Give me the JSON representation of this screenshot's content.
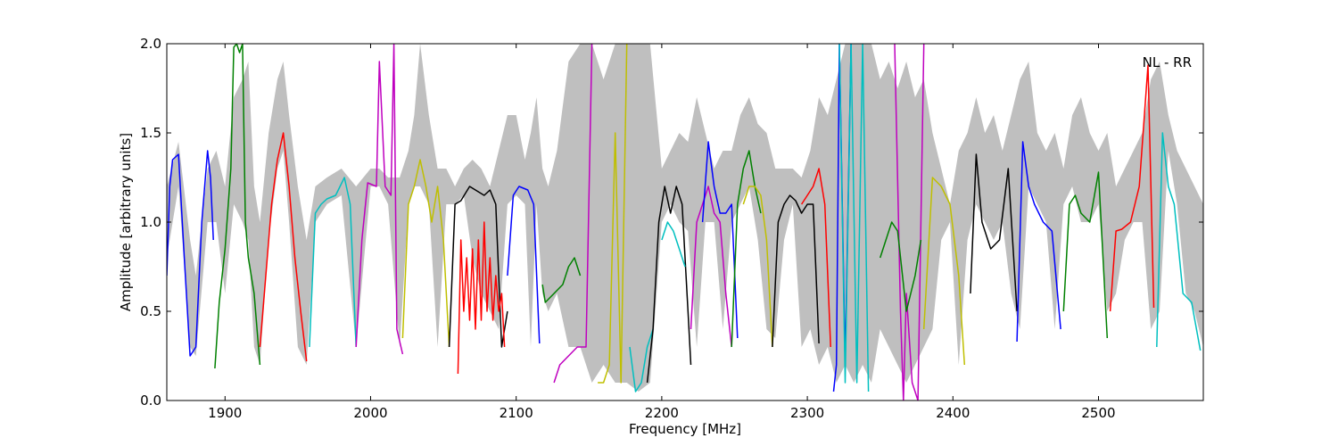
{
  "chart_data": {
    "type": "line",
    "title": "",
    "annotation": "NL - RR",
    "xlabel": "Frequency [MHz]",
    "ylabel": "Amplitude [arbitrary units]",
    "xlim": [
      1860,
      2572
    ],
    "ylim": [
      0,
      2
    ],
    "xticks": [
      1900,
      2000,
      2100,
      2200,
      2300,
      2400,
      2500
    ],
    "yticks": [
      0.0,
      0.5,
      1.0,
      1.5,
      2.0
    ],
    "ytick_labels": [
      "0.0",
      "0.5",
      "1.0",
      "1.5",
      "2.0"
    ],
    "grid": false,
    "background_envelope": {
      "name": "envelope",
      "color": "#bfbfbf",
      "x": [
        1860,
        1868,
        1876,
        1880,
        1888,
        1894,
        1900,
        1906,
        1912,
        1916,
        1920,
        1924,
        1930,
        1936,
        1940,
        1944,
        1950,
        1956,
        1962,
        1970,
        1980,
        1990,
        2000,
        2006,
        2012,
        2020,
        2026,
        2030,
        2034,
        2040,
        2046,
        2052,
        2058,
        2064,
        2070,
        2076,
        2082,
        2088,
        2094,
        2100,
        2106,
        2110,
        2114,
        2118,
        2122,
        2128,
        2136,
        2144,
        2152,
        2160,
        2168,
        2176,
        2184,
        2192,
        2200,
        2206,
        2212,
        2218,
        2224,
        2230,
        2236,
        2242,
        2248,
        2254,
        2260,
        2266,
        2272,
        2278,
        2284,
        2290,
        2296,
        2302,
        2308,
        2314,
        2320,
        2326,
        2332,
        2338,
        2344,
        2350,
        2356,
        2362,
        2368,
        2374,
        2380,
        2386,
        2392,
        2398,
        2404,
        2410,
        2416,
        2422,
        2428,
        2434,
        2440,
        2446,
        2452,
        2458,
        2464,
        2470,
        2476,
        2482,
        2488,
        2494,
        2500,
        2506,
        2512,
        2518,
        2524,
        2530,
        2536,
        2542,
        2548,
        2554,
        2560,
        2566,
        2572
      ],
      "y_upper": [
        1.2,
        1.45,
        0.9,
        0.7,
        1.3,
        1.4,
        1.2,
        1.7,
        1.8,
        1.9,
        1.2,
        1.0,
        1.5,
        1.8,
        1.9,
        1.6,
        1.2,
        0.9,
        1.2,
        1.25,
        1.3,
        1.2,
        1.3,
        1.3,
        1.25,
        1.25,
        1.4,
        1.6,
        2.0,
        1.6,
        1.3,
        1.3,
        1.2,
        1.3,
        1.35,
        1.3,
        1.2,
        1.4,
        1.6,
        1.6,
        1.35,
        1.5,
        1.7,
        1.3,
        1.2,
        1.4,
        1.9,
        2.0,
        2.0,
        1.8,
        2.0,
        2.0,
        2.0,
        2.0,
        1.3,
        1.4,
        1.5,
        1.45,
        1.7,
        1.5,
        1.3,
        1.4,
        1.4,
        1.6,
        1.7,
        1.55,
        1.5,
        1.3,
        1.3,
        1.3,
        1.25,
        1.4,
        1.7,
        1.6,
        1.8,
        2.0,
        2.0,
        2.0,
        2.0,
        1.8,
        1.9,
        1.75,
        1.9,
        1.7,
        1.8,
        1.5,
        1.3,
        1.1,
        1.4,
        1.5,
        1.7,
        1.5,
        1.6,
        1.4,
        1.6,
        1.8,
        1.9,
        1.5,
        1.4,
        1.5,
        1.3,
        1.6,
        1.7,
        1.5,
        1.4,
        1.5,
        1.2,
        1.3,
        1.4,
        1.5,
        1.8,
        1.9,
        1.6,
        1.4,
        1.3,
        1.2,
        1.1
      ],
      "y_lower": [
        0.8,
        1.2,
        0.3,
        0.25,
        1.0,
        1.0,
        0.6,
        1.1,
        1.0,
        0.9,
        0.3,
        0.2,
        0.9,
        1.3,
        1.4,
        1.0,
        0.3,
        0.2,
        1.0,
        1.1,
        1.15,
        0.3,
        1.2,
        1.2,
        1.1,
        0.3,
        1.1,
        1.2,
        1.2,
        1.1,
        0.3,
        1.1,
        1.1,
        1.15,
        0.8,
        0.6,
        0.5,
        0.4,
        1.1,
        1.15,
        1.1,
        0.3,
        1.1,
        0.6,
        0.5,
        0.6,
        0.3,
        0.3,
        0.1,
        0.2,
        0.1,
        0.1,
        0.05,
        0.1,
        1.0,
        1.1,
        1.0,
        0.95,
        0.3,
        1.0,
        1.0,
        0.4,
        1.0,
        1.1,
        1.2,
        0.9,
        0.4,
        0.35,
        0.9,
        1.1,
        0.3,
        0.4,
        0.2,
        0.3,
        0.1,
        0.2,
        0.1,
        0.2,
        0.1,
        0.4,
        0.3,
        0.2,
        0.1,
        0.2,
        0.3,
        0.4,
        0.9,
        1.0,
        0.2,
        0.9,
        1.1,
        1.0,
        0.9,
        1.0,
        0.6,
        0.4,
        1.2,
        1.1,
        1.0,
        0.4,
        1.1,
        1.2,
        1.0,
        1.0,
        1.1,
        0.5,
        0.6,
        0.9,
        1.0,
        1.0,
        0.4,
        0.5,
        1.4,
        1.1,
        0.6,
        0.5,
        0.3
      ]
    },
    "series": [
      {
        "color": "#0000ff",
        "x": [
          1860,
          1862,
          1864,
          1868,
          1872,
          1876,
          1880,
          1884,
          1888,
          1890,
          1892
        ],
        "y": [
          0.7,
          1.2,
          1.35,
          1.38,
          0.8,
          0.25,
          0.3,
          1.0,
          1.4,
          1.25,
          0.9
        ]
      },
      {
        "color": "#008000",
        "x": [
          1893,
          1896,
          1900,
          1904,
          1906,
          1908,
          1910,
          1912,
          1914,
          1916,
          1920,
          1924
        ],
        "y": [
          0.18,
          0.55,
          0.85,
          1.3,
          1.98,
          2.0,
          1.95,
          2.0,
          1.0,
          0.8,
          0.6,
          0.2
        ]
      },
      {
        "color": "#ff0000",
        "x": [
          1924,
          1928,
          1932,
          1936,
          1940,
          1944,
          1948,
          1952,
          1956
        ],
        "y": [
          0.3,
          0.7,
          1.1,
          1.35,
          1.5,
          1.2,
          0.8,
          0.5,
          0.22
        ]
      },
      {
        "color": "#00bfbf",
        "x": [
          1958,
          1962,
          1966,
          1970,
          1976,
          1982,
          1986,
          1990
        ],
        "y": [
          0.3,
          1.05,
          1.1,
          1.13,
          1.15,
          1.25,
          1.1,
          0.3
        ]
      },
      {
        "color": "#bf00bf",
        "x": [
          1990,
          1994,
          1998,
          2004,
          2006,
          2010,
          2014,
          2016,
          2018,
          2022
        ],
        "y": [
          0.3,
          0.9,
          1.22,
          1.2,
          1.9,
          1.2,
          1.15,
          2.0,
          0.4,
          0.26
        ]
      },
      {
        "color": "#bfbf00",
        "x": [
          2022,
          2026,
          2030,
          2034,
          2038,
          2042,
          2046,
          2050,
          2054
        ],
        "y": [
          0.35,
          1.1,
          1.2,
          1.35,
          1.2,
          1.0,
          1.2,
          0.9,
          0.3
        ]
      },
      {
        "color": "#000000",
        "x": [
          2054,
          2058,
          2062,
          2068,
          2072,
          2078,
          2082,
          2086,
          2090,
          2094
        ],
        "y": [
          0.3,
          1.1,
          1.12,
          1.2,
          1.18,
          1.15,
          1.18,
          1.1,
          0.3,
          0.5
        ]
      },
      {
        "color": "#ff0000",
        "x": [
          2060,
          2062,
          2064,
          2066,
          2068,
          2070,
          2072,
          2074,
          2076,
          2078,
          2080,
          2082,
          2084,
          2086,
          2088,
          2090,
          2092
        ],
        "y": [
          0.15,
          0.9,
          0.5,
          0.8,
          0.45,
          0.85,
          0.4,
          0.9,
          0.45,
          1.0,
          0.5,
          0.8,
          0.45,
          0.7,
          0.5,
          0.6,
          0.3
        ]
      },
      {
        "color": "#0000ff",
        "x": [
          2094,
          2098,
          2102,
          2108,
          2112,
          2116
        ],
        "y": [
          0.7,
          1.15,
          1.2,
          1.18,
          1.1,
          0.32
        ]
      },
      {
        "color": "#008000",
        "x": [
          2118,
          2120,
          2126,
          2132,
          2136,
          2140,
          2144
        ],
        "y": [
          0.65,
          0.55,
          0.6,
          0.65,
          0.75,
          0.8,
          0.7
        ]
      },
      {
        "color": "#bf00bf",
        "x": [
          2126,
          2130,
          2136,
          2142,
          2148,
          2152
        ],
        "y": [
          0.1,
          0.2,
          0.25,
          0.3,
          0.3,
          2.0
        ]
      },
      {
        "color": "#bfbf00",
        "x": [
          2156,
          2160,
          2164,
          2168,
          2172,
          2176
        ],
        "y": [
          0.1,
          0.1,
          0.2,
          1.5,
          0.1,
          2.0
        ]
      },
      {
        "color": "#00bfbf",
        "x": [
          2178,
          2182,
          2186,
          2190,
          2194
        ],
        "y": [
          0.3,
          0.05,
          0.1,
          0.3,
          0.4
        ]
      },
      {
        "color": "#000000",
        "x": [
          2190,
          2194,
          2198,
          2202,
          2206,
          2210,
          2214,
          2218,
          2220
        ],
        "y": [
          0.1,
          0.4,
          1.0,
          1.2,
          1.05,
          1.2,
          1.1,
          0.5,
          0.2
        ]
      },
      {
        "color": "#00bfbf",
        "x": [
          2200,
          2204,
          2208,
          2212,
          2216
        ],
        "y": [
          0.9,
          1.0,
          0.95,
          0.85,
          0.75
        ]
      },
      {
        "color": "#bf00bf",
        "x": [
          2220,
          2224,
          2228,
          2232,
          2236,
          2240,
          2244,
          2248
        ],
        "y": [
          0.4,
          1.0,
          1.1,
          1.2,
          1.05,
          1.0,
          0.6,
          0.3
        ]
      },
      {
        "color": "#0000ff",
        "x": [
          2228,
          2232,
          2236,
          2240,
          2244,
          2248,
          2252
        ],
        "y": [
          1.0,
          1.45,
          1.2,
          1.05,
          1.05,
          1.1,
          0.35
        ]
      },
      {
        "color": "#008000",
        "x": [
          2248,
          2252,
          2256,
          2260,
          2264,
          2268
        ],
        "y": [
          0.3,
          1.1,
          1.3,
          1.4,
          1.2,
          1.05
        ]
      },
      {
        "color": "#bfbf00",
        "x": [
          2256,
          2260,
          2264,
          2268,
          2272,
          2276
        ],
        "y": [
          1.1,
          1.2,
          1.2,
          1.15,
          0.9,
          0.3
        ]
      },
      {
        "color": "#000000",
        "x": [
          2276,
          2280,
          2284,
          2288,
          2292,
          2296,
          2300,
          2304,
          2308
        ],
        "y": [
          0.3,
          1.0,
          1.1,
          1.15,
          1.12,
          1.05,
          1.1,
          1.1,
          0.32
        ]
      },
      {
        "color": "#ff0000",
        "x": [
          2296,
          2300,
          2304,
          2308,
          2312,
          2316
        ],
        "y": [
          1.1,
          1.15,
          1.2,
          1.3,
          1.1,
          0.3
        ]
      },
      {
        "color": "#0000ff",
        "x": [
          2318,
          2320,
          2322,
          2326,
          2330
        ],
        "y": [
          0.05,
          0.2,
          2.0,
          0.2,
          2.0
        ]
      },
      {
        "color": "#00bfbf",
        "x": [
          2322,
          2326,
          2330,
          2334,
          2338,
          2342
        ],
        "y": [
          2.0,
          0.1,
          2.0,
          0.1,
          2.0,
          0.05
        ]
      },
      {
        "color": "#bf00bf",
        "x": [
          2360,
          2364,
          2366,
          2368,
          2372,
          2376,
          2380
        ],
        "y": [
          2.0,
          0.5,
          0.0,
          0.6,
          0.1,
          0.0,
          2.0
        ]
      },
      {
        "color": "#008000",
        "x": [
          2350,
          2354,
          2358,
          2362,
          2368,
          2374,
          2378
        ],
        "y": [
          0.8,
          0.9,
          1.0,
          0.95,
          0.5,
          0.7,
          0.9
        ]
      },
      {
        "color": "#bfbf00",
        "x": [
          2380,
          2386,
          2392,
          2398,
          2404,
          2408
        ],
        "y": [
          0.4,
          1.25,
          1.2,
          1.1,
          0.7,
          0.2
        ]
      },
      {
        "color": "#000000",
        "x": [
          2412,
          2416,
          2420,
          2426,
          2432,
          2438,
          2444
        ],
        "y": [
          0.6,
          1.38,
          1.0,
          0.85,
          0.9,
          1.3,
          0.5
        ]
      },
      {
        "color": "#0000ff",
        "x": [
          2444,
          2448,
          2452,
          2456,
          2462,
          2468,
          2474
        ],
        "y": [
          0.33,
          1.45,
          1.2,
          1.1,
          1.0,
          0.95,
          0.4
        ]
      },
      {
        "color": "#008000",
        "x": [
          2476,
          2480,
          2484,
          2488,
          2494,
          2500,
          2506
        ],
        "y": [
          0.5,
          1.1,
          1.15,
          1.05,
          1.0,
          1.28,
          0.35
        ]
      },
      {
        "color": "#ff0000",
        "x": [
          2508,
          2512,
          2516,
          2522,
          2528,
          2534,
          2538
        ],
        "y": [
          0.5,
          0.95,
          0.96,
          1.0,
          1.2,
          1.88,
          0.52
        ]
      },
      {
        "color": "#00bfbf",
        "x": [
          2540,
          2544,
          2548,
          2552,
          2558,
          2564,
          2570
        ],
        "y": [
          0.3,
          1.5,
          1.2,
          1.1,
          0.6,
          0.55,
          0.28
        ]
      }
    ]
  }
}
